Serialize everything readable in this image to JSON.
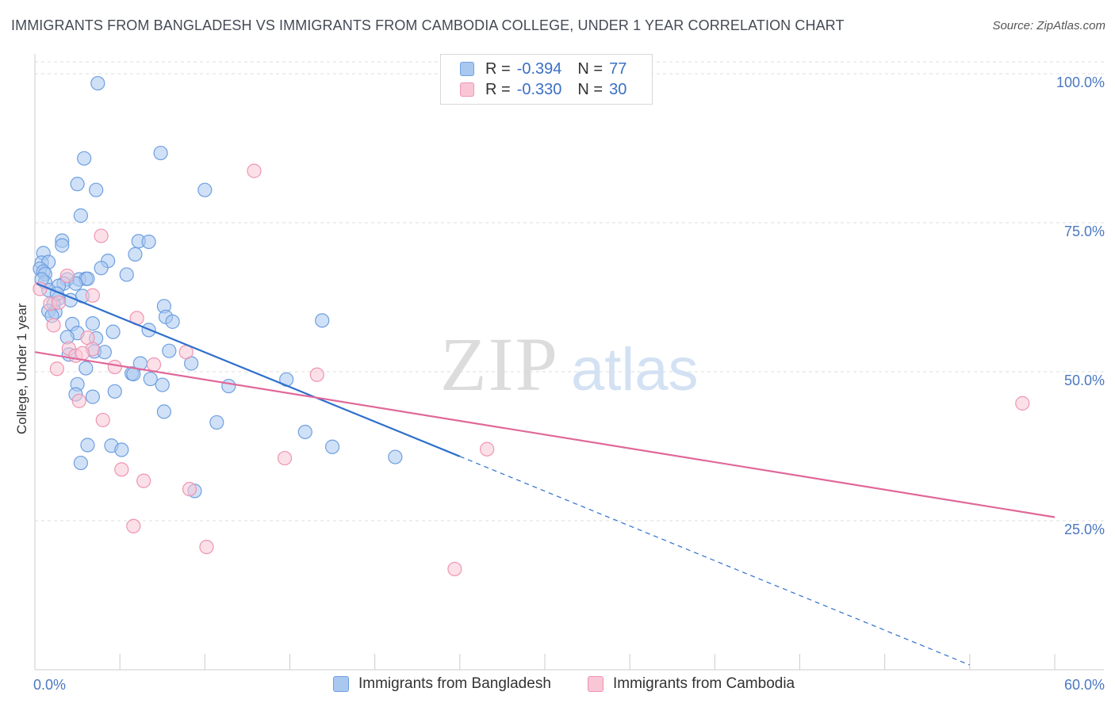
{
  "title": "IMMIGRANTS FROM BANGLADESH VS IMMIGRANTS FROM CAMBODIA COLLEGE, UNDER 1 YEAR CORRELATION CHART",
  "source": "Source: ZipAtlas.com",
  "watermark": {
    "zip": "ZIP",
    "atlas": "atlas"
  },
  "legend": {
    "rows": [
      {
        "r_label": "R =",
        "r_value": "-0.394",
        "n_label": "N =",
        "n_value": "77",
        "color": "#a9c8f0",
        "border": "#6f9fe0"
      },
      {
        "r_label": "R =",
        "r_value": "-0.330",
        "n_label": "N =",
        "n_value": "30",
        "color": "#f9c6d6",
        "border": "#ee95b2"
      }
    ]
  },
  "bottom_legend": [
    {
      "label": "Immigrants from Bangladesh",
      "color": "#a9c8f0",
      "border": "#6f9fe0"
    },
    {
      "label": "Immigrants from Cambodia",
      "color": "#f9c6d6",
      "border": "#ee95b2"
    }
  ],
  "chart_data": {
    "type": "scatter",
    "title": "IMMIGRANTS FROM BANGLADESH VS IMMIGRANTS FROM CAMBODIA COLLEGE, UNDER 1 YEAR CORRELATION CHART",
    "xlabel": "",
    "ylabel": "College, Under 1 year",
    "xlim": [
      0,
      60
    ],
    "ylim": [
      0,
      102
    ],
    "x_tick_labels": [
      "0.0%",
      "60.0%"
    ],
    "y_ticks": [
      25,
      50,
      75,
      100
    ],
    "y_tick_labels": [
      "25.0%",
      "50.0%",
      "75.0%",
      "100.0%"
    ],
    "grid": true,
    "series": [
      {
        "name": "Immigrants from Bangladesh",
        "color": "#6f9fe0",
        "fill": "#a9c8f0",
        "line_color": "#2f6fcc",
        "trend": {
          "x0": 0.1,
          "y0": 64.8,
          "x1": 25.0,
          "y1": 35.8,
          "dash_x1": 55.0,
          "dash_y1": 0.8
        },
        "points": [
          [
            3.7,
            98.4
          ],
          [
            2.9,
            85.8
          ],
          [
            7.4,
            86.7
          ],
          [
            2.5,
            81.5
          ],
          [
            3.6,
            80.5
          ],
          [
            10.0,
            80.5
          ],
          [
            2.7,
            76.2
          ],
          [
            6.1,
            71.9
          ],
          [
            6.7,
            71.8
          ],
          [
            1.6,
            72.0
          ],
          [
            1.6,
            71.2
          ],
          [
            0.5,
            69.9
          ],
          [
            5.9,
            69.7
          ],
          [
            0.4,
            68.3
          ],
          [
            0.8,
            68.4
          ],
          [
            4.3,
            68.6
          ],
          [
            3.9,
            67.4
          ],
          [
            0.3,
            67.3
          ],
          [
            0.5,
            66.8
          ],
          [
            0.6,
            66.4
          ],
          [
            5.4,
            66.3
          ],
          [
            2.6,
            65.5
          ],
          [
            3.0,
            65.6
          ],
          [
            3.1,
            65.6
          ],
          [
            1.9,
            65.5
          ],
          [
            0.6,
            65.0
          ],
          [
            1.7,
            64.8
          ],
          [
            1.4,
            64.4
          ],
          [
            0.8,
            63.7
          ],
          [
            1.4,
            62.3
          ],
          [
            2.1,
            62.0
          ],
          [
            1.1,
            61.4
          ],
          [
            7.6,
            61.0
          ],
          [
            0.8,
            60.2
          ],
          [
            1.2,
            60.0
          ],
          [
            1.0,
            59.4
          ],
          [
            7.7,
            59.2
          ],
          [
            8.1,
            58.4
          ],
          [
            16.9,
            58.6
          ],
          [
            3.4,
            58.1
          ],
          [
            2.2,
            58.0
          ],
          [
            6.7,
            57.0
          ],
          [
            4.6,
            56.7
          ],
          [
            2.5,
            56.5
          ],
          [
            1.9,
            55.8
          ],
          [
            3.6,
            55.6
          ],
          [
            7.9,
            53.5
          ],
          [
            3.5,
            53.4
          ],
          [
            4.1,
            53.3
          ],
          [
            2.0,
            52.9
          ],
          [
            6.2,
            51.4
          ],
          [
            9.2,
            51.4
          ],
          [
            3.0,
            50.6
          ],
          [
            5.7,
            49.7
          ],
          [
            5.8,
            49.6
          ],
          [
            6.8,
            48.8
          ],
          [
            14.8,
            48.7
          ],
          [
            2.5,
            47.9
          ],
          [
            7.5,
            47.8
          ],
          [
            11.4,
            47.6
          ],
          [
            4.7,
            46.7
          ],
          [
            2.4,
            46.2
          ],
          [
            3.4,
            45.8
          ],
          [
            7.6,
            43.3
          ],
          [
            10.7,
            41.5
          ],
          [
            15.9,
            39.9
          ],
          [
            3.1,
            37.7
          ],
          [
            4.5,
            37.6
          ],
          [
            17.5,
            37.4
          ],
          [
            5.1,
            36.9
          ],
          [
            21.2,
            35.7
          ],
          [
            2.7,
            34.7
          ],
          [
            9.4,
            30.0
          ],
          [
            2.4,
            64.8
          ],
          [
            1.3,
            63.1
          ],
          [
            2.8,
            62.7
          ],
          [
            0.4,
            65.5
          ]
        ]
      },
      {
        "name": "Immigrants from Cambodia",
        "color": "#ee95b2",
        "fill": "#f9c6d6",
        "line_color": "#e0689a",
        "trend": {
          "x0": 0.0,
          "y0": 53.3,
          "x1": 60.0,
          "y1": 25.6
        },
        "points": [
          [
            12.9,
            83.7
          ],
          [
            3.9,
            72.8
          ],
          [
            1.9,
            66.1
          ],
          [
            0.3,
            63.9
          ],
          [
            3.4,
            62.8
          ],
          [
            0.9,
            61.4
          ],
          [
            1.4,
            61.6
          ],
          [
            6.0,
            59.0
          ],
          [
            1.1,
            57.8
          ],
          [
            3.1,
            55.7
          ],
          [
            2.0,
            53.9
          ],
          [
            3.4,
            53.8
          ],
          [
            8.9,
            53.3
          ],
          [
            2.4,
            52.7
          ],
          [
            7.0,
            51.2
          ],
          [
            4.7,
            50.8
          ],
          [
            1.3,
            50.5
          ],
          [
            16.6,
            49.5
          ],
          [
            2.6,
            45.1
          ],
          [
            4.0,
            41.9
          ],
          [
            58.1,
            44.7
          ],
          [
            26.6,
            37.0
          ],
          [
            14.7,
            35.5
          ],
          [
            5.1,
            33.6
          ],
          [
            6.4,
            31.7
          ],
          [
            9.1,
            30.3
          ],
          [
            5.8,
            24.1
          ],
          [
            10.1,
            20.6
          ],
          [
            24.7,
            16.9
          ],
          [
            2.8,
            53.1
          ]
        ]
      }
    ]
  }
}
